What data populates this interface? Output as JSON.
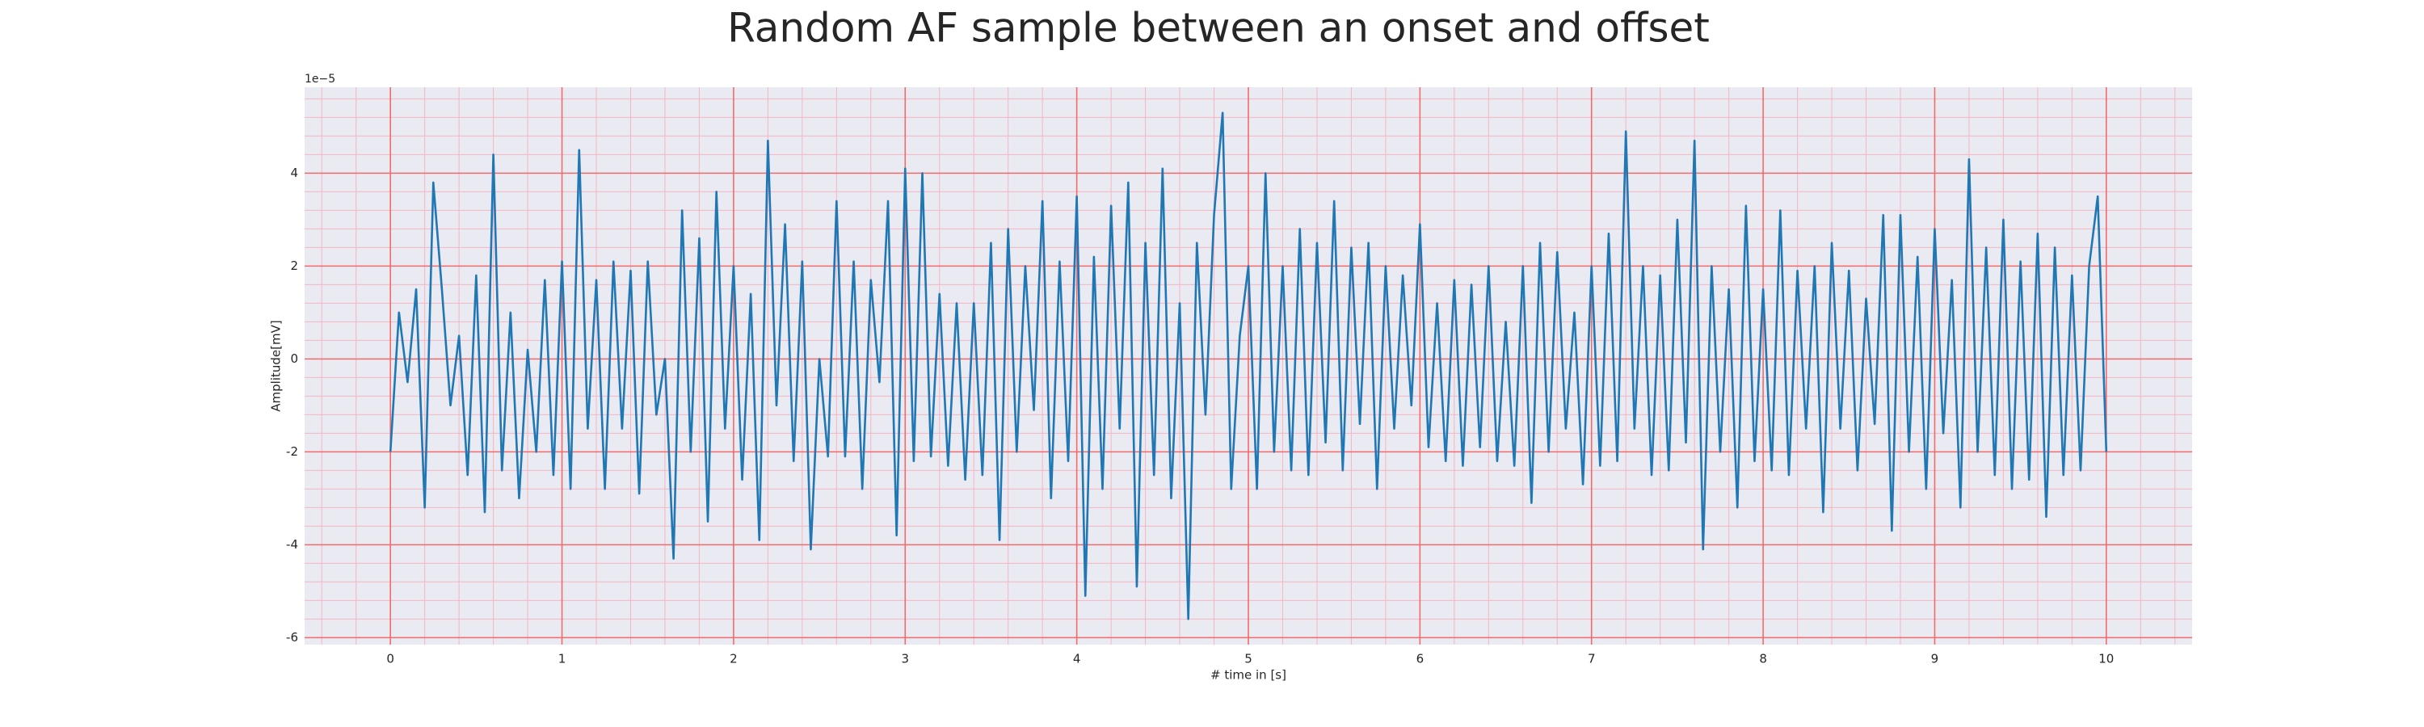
{
  "chart_data": {
    "type": "line",
    "title": "Random AF sample between an onset and offset",
    "xlabel": "# time in [s]",
    "ylabel": "Amplitude[mV]",
    "y_offset_label": "1e−5",
    "color": "#1f77b4",
    "grid": true,
    "minor_grid": true,
    "xlim": [
      -0.5,
      10.5
    ],
    "xticks": [
      0,
      1,
      2,
      3,
      4,
      5,
      6,
      7,
      8,
      9,
      10
    ],
    "ylim": [
      -6.15,
      5.85
    ],
    "yticks": [
      -6,
      -4,
      -2,
      0,
      2,
      4
    ],
    "x": [
      0,
      0.05,
      0.1,
      0.15,
      0.2,
      0.25,
      0.3,
      0.35,
      0.4,
      0.45,
      0.5,
      0.55,
      0.6,
      0.65,
      0.7,
      0.75,
      0.8,
      0.85,
      0.9,
      0.95,
      1,
      1.05,
      1.1,
      1.15,
      1.2,
      1.25,
      1.3,
      1.35,
      1.4,
      1.45,
      1.5,
      1.55,
      1.6,
      1.65,
      1.7,
      1.75,
      1.8,
      1.85,
      1.9,
      1.95,
      2,
      2.05,
      2.1,
      2.15,
      2.2,
      2.25,
      2.3,
      2.35,
      2.4,
      2.45,
      2.5,
      2.55,
      2.6,
      2.65,
      2.7,
      2.75,
      2.8,
      2.85,
      2.9,
      2.95,
      3,
      3.05,
      3.1,
      3.15,
      3.2,
      3.25,
      3.3,
      3.35,
      3.4,
      3.45,
      3.5,
      3.55,
      3.6,
      3.65,
      3.7,
      3.75,
      3.8,
      3.85,
      3.9,
      3.95,
      4,
      4.05,
      4.1,
      4.15,
      4.2,
      4.25,
      4.3,
      4.35,
      4.4,
      4.45,
      4.5,
      4.55,
      4.6,
      4.65,
      4.7,
      4.75,
      4.8,
      4.85,
      4.9,
      4.95,
      5,
      5.05,
      5.1,
      5.15,
      5.2,
      5.25,
      5.3,
      5.35,
      5.4,
      5.45,
      5.5,
      5.55,
      5.6,
      5.65,
      5.7,
      5.75,
      5.8,
      5.85,
      5.9,
      5.95,
      6,
      6.05,
      6.1,
      6.15,
      6.2,
      6.25,
      6.3,
      6.35,
      6.4,
      6.45,
      6.5,
      6.55,
      6.6,
      6.65,
      6.7,
      6.75,
      6.8,
      6.85,
      6.9,
      6.95,
      7,
      7.05,
      7.1,
      7.15,
      7.2,
      7.25,
      7.3,
      7.35,
      7.4,
      7.45,
      7.5,
      7.55,
      7.6,
      7.65,
      7.7,
      7.75,
      7.8,
      7.85,
      7.9,
      7.95,
      8,
      8.05,
      8.1,
      8.15,
      8.2,
      8.25,
      8.3,
      8.35,
      8.4,
      8.45,
      8.5,
      8.55,
      8.6,
      8.65,
      8.7,
      8.75,
      8.8,
      8.85,
      8.9,
      8.95,
      9,
      9.05,
      9.1,
      9.15,
      9.2,
      9.25,
      9.3,
      9.35,
      9.4,
      9.45,
      9.5,
      9.55,
      9.6,
      9.65,
      9.7,
      9.75,
      9.8,
      9.85,
      9.9,
      9.95,
      10
    ],
    "values": [
      -2,
      1,
      -0.5,
      1.5,
      -3.2,
      3.8,
      1.5,
      -1,
      0.5,
      -2.5,
      1.8,
      -3.3,
      4.4,
      -2.4,
      1,
      -3,
      0.2,
      -2,
      1.7,
      -2.5,
      2.1,
      -2.8,
      4.5,
      -1.5,
      1.7,
      -2.8,
      2.1,
      -1.5,
      1.9,
      -2.9,
      2.1,
      -1.2,
      0,
      -4.3,
      3.2,
      -2,
      2.6,
      -3.5,
      3.6,
      -1.5,
      2,
      -2.6,
      1.4,
      -3.9,
      4.7,
      -1,
      2.9,
      -2.2,
      2.1,
      -4.1,
      0,
      -2.1,
      3.4,
      -2.1,
      2.1,
      -2.8,
      1.7,
      -0.5,
      3.4,
      -3.8,
      4.1,
      -2.2,
      4,
      -2.1,
      1.4,
      -2.3,
      1.2,
      -2.6,
      1.2,
      -2.5,
      2.5,
      -3.9,
      2.8,
      -2,
      2,
      -1.1,
      3.4,
      -3,
      2.1,
      -2.2,
      3.5,
      -5.1,
      2.2,
      -2.8,
      3.3,
      -1.5,
      3.8,
      -4.9,
      2.5,
      -2.5,
      4.1,
      -3,
      1.2,
      -5.6,
      2.5,
      -1.2,
      3.1,
      5.3,
      -2.8,
      0.5,
      2,
      -2.8,
      4,
      -2,
      2,
      -2.4,
      2.8,
      -2.5,
      2.5,
      -1.8,
      3.4,
      -2.4,
      2.4,
      -1.4,
      2.5,
      -2.8,
      2,
      -1.5,
      1.8,
      -1,
      2.9,
      -1.9,
      1.2,
      -2.2,
      1.7,
      -2.3,
      1.6,
      -1.9,
      2,
      -2.2,
      0.8,
      -2.3,
      2,
      -3.1,
      2.5,
      -2,
      2.3,
      -1.5,
      1,
      -2.7,
      2,
      -2.3,
      2.7,
      -2.2,
      4.9,
      -1.5,
      2,
      -2.5,
      1.8,
      -2.4,
      3,
      -1.8,
      4.7,
      -4.1,
      2,
      -2,
      1.5,
      -3.2,
      3.3,
      -2.2,
      1.5,
      -2.4,
      3.2,
      -2.5,
      1.9,
      -1.5,
      2,
      -3.3,
      2.5,
      -1.5,
      1.9,
      -2.4,
      1.3,
      -1.4,
      3.1,
      -3.7,
      3.1,
      -2,
      2.2,
      -2.8,
      2.8,
      -1.6,
      1.7,
      -3.2,
      4.3,
      -2,
      2.4,
      -2.5,
      3,
      -2.8,
      2.1,
      -2.6,
      2.7,
      -3.4,
      2.4,
      -2.5,
      1.8,
      -2.4,
      2,
      3.5,
      -2
    ]
  }
}
